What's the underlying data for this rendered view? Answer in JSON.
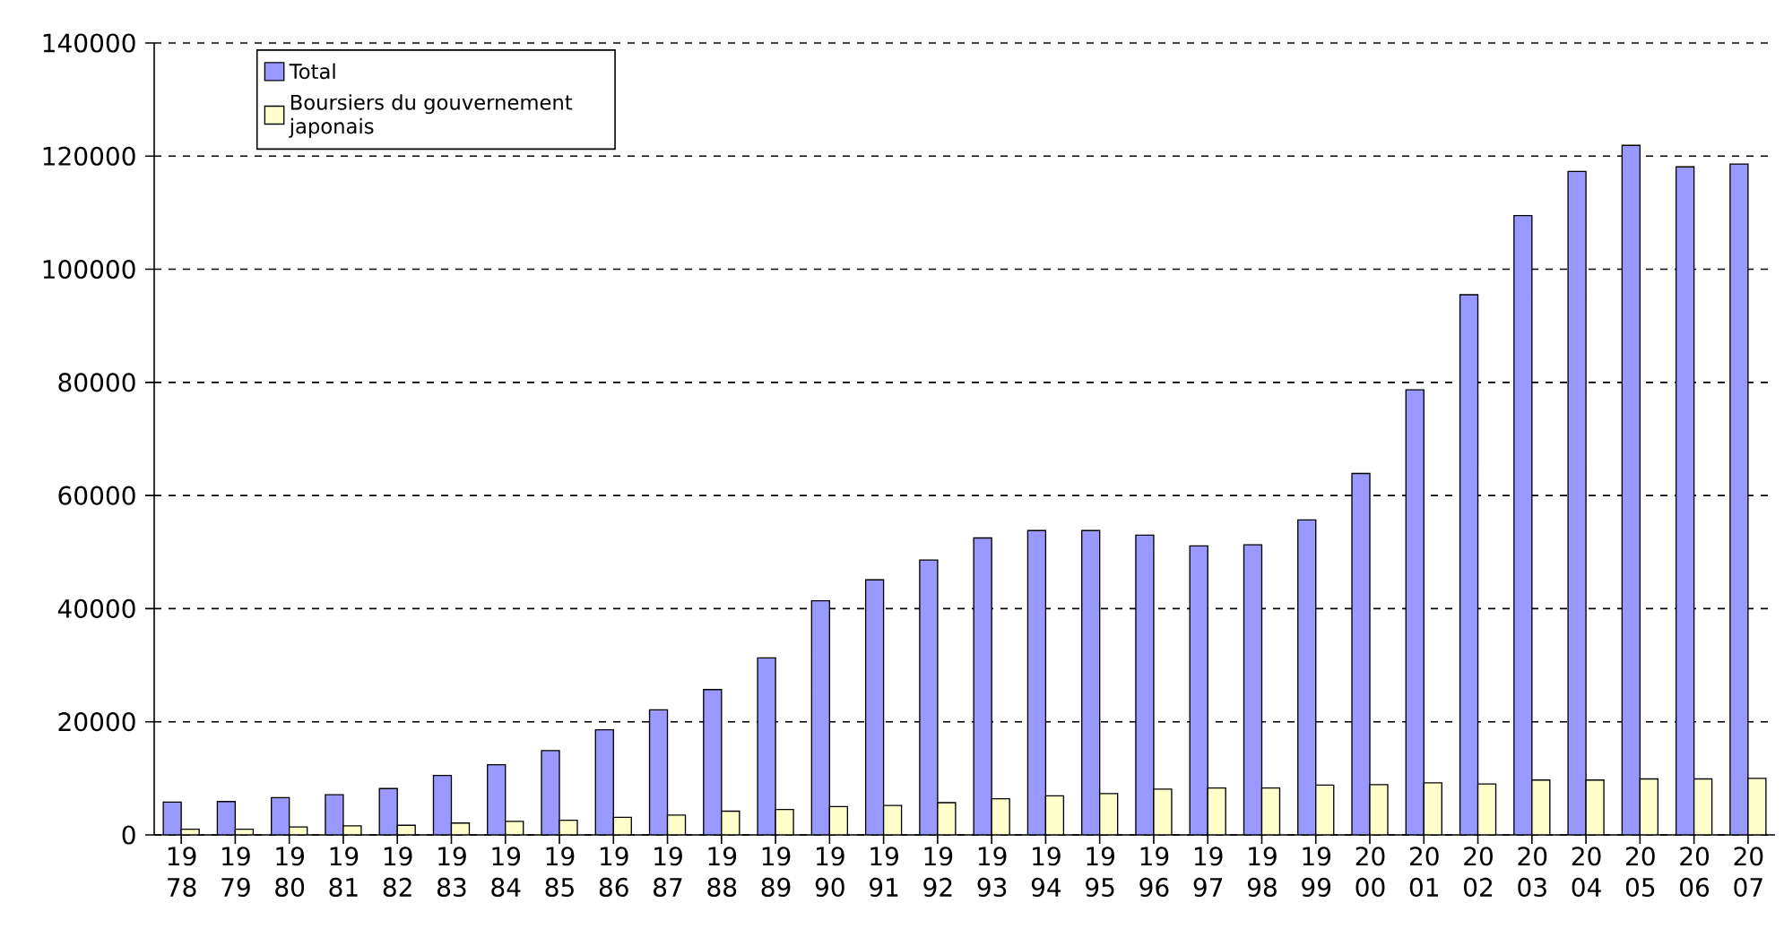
{
  "chart_data": {
    "type": "bar",
    "categories": [
      "19 78",
      "19 79",
      "19 80",
      "19 81",
      "19 82",
      "19 83",
      "19 84",
      "19 85",
      "19 86",
      "19 87",
      "19 88",
      "19 89",
      "19 90",
      "19 91",
      "19 92",
      "19 93",
      "19 94",
      "19 95",
      "19 96",
      "19 97",
      "19 98",
      "19 99",
      "20 00",
      "20 01",
      "20 02",
      "20 03",
      "20 04",
      "20 05",
      "20 06",
      "20 07"
    ],
    "series": [
      {
        "name": "Total",
        "color": "#9999ff",
        "values": [
          5800,
          5900,
          6600,
          7100,
          8200,
          10500,
          12400,
          14900,
          18600,
          22100,
          25700,
          31300,
          41400,
          45100,
          48600,
          52500,
          53800,
          53800,
          53000,
          51100,
          51300,
          55700,
          63900,
          78700,
          95500,
          109500,
          117300,
          121900,
          118100,
          118600
        ]
      },
      {
        "name": "Boursiers du gouvernement japonais",
        "color": "#ffffcc",
        "values": [
          1000,
          1000,
          1400,
          1600,
          1700,
          2100,
          2400,
          2600,
          3100,
          3500,
          4200,
          4500,
          5000,
          5200,
          5700,
          6400,
          6900,
          7300,
          8100,
          8300,
          8300,
          8800,
          8900,
          9200,
          9000,
          9700,
          9700,
          9900,
          9900,
          10000
        ]
      }
    ],
    "ylim": [
      0,
      140000
    ],
    "yticks": [
      0,
      20000,
      40000,
      60000,
      80000,
      100000,
      120000,
      140000
    ],
    "grid": "y",
    "legend": "top left"
  }
}
